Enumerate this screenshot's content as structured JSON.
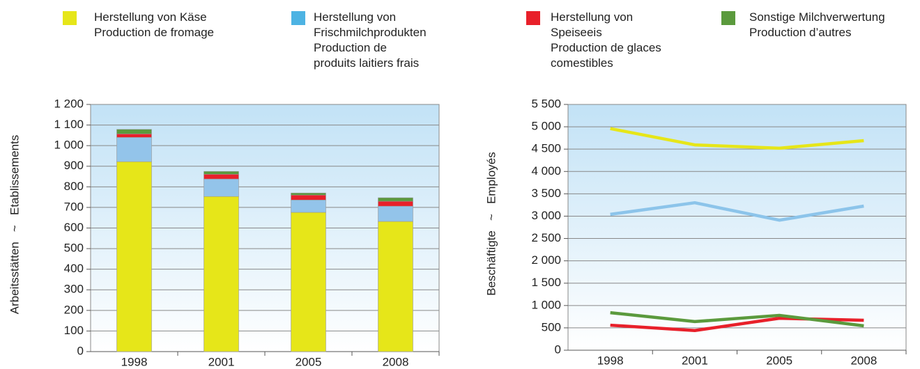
{
  "legend": [
    {
      "name": "Herstellung von Käse\nProduction de fromage",
      "color": "#e6e619"
    },
    {
      "name": "Herstellung von\nFrischmilchprodukten\nProduction de\nproduits laitiers frais",
      "color": "#4db3e3"
    },
    {
      "name": "Herstellung von\nSpeiseeis\nProduction de glaces\ncomestibles",
      "color": "#e8202a"
    },
    {
      "name": "Sonstige Milchverwertung\nProduction d’autres",
      "color": "#5b9a3d"
    }
  ],
  "chart_data": [
    {
      "type": "bar",
      "stacked": true,
      "y_label": "Arbeitsstätten   ~   Etablissements",
      "categories": [
        "1998",
        "2001",
        "2005",
        "2008"
      ],
      "series": [
        {
          "color": "#e6e619",
          "values": [
            922,
            753,
            676,
            632
          ]
        },
        {
          "color": "#93c4ea",
          "values": [
            118,
            85,
            60,
            74
          ]
        },
        {
          "color": "#e8202a",
          "values": [
            17,
            23,
            24,
            24
          ]
        },
        {
          "color": "#5b9a3d",
          "values": [
            22,
            14,
            10,
            17
          ]
        }
      ],
      "ylim": [
        0,
        1200
      ],
      "yticks": [
        0,
        100,
        200,
        300,
        400,
        500,
        600,
        700,
        800,
        900,
        {
          "value": 1000,
          "label": "1 000"
        },
        {
          "value": 1100,
          "label": "1 100"
        },
        {
          "value": 1200,
          "label": "1 200"
        }
      ],
      "grid": true
    },
    {
      "type": "line",
      "y_label": "Beschäftigte   ~   Employés",
      "categories": [
        "1998",
        "2001",
        "2005",
        "2008"
      ],
      "series": [
        {
          "color": "#e6e619",
          "values": [
            4960,
            4595,
            4520,
            4690
          ]
        },
        {
          "color": "#8cc4ea",
          "values": [
            3040,
            3300,
            2910,
            3225
          ]
        },
        {
          "color": "#e8202a",
          "values": [
            560,
            440,
            715,
            670
          ]
        },
        {
          "color": "#5b9a3d",
          "values": [
            840,
            640,
            780,
            545
          ]
        }
      ],
      "ylim": [
        0,
        5500
      ],
      "yticks": [
        0,
        500,
        {
          "value": 1000,
          "label": "1 000"
        },
        {
          "value": 1500,
          "label": "1 500"
        },
        {
          "value": 2000,
          "label": "2 000"
        },
        {
          "value": 2500,
          "label": "2 500"
        },
        {
          "value": 3000,
          "label": "3 000"
        },
        {
          "value": 3500,
          "label": "3 500"
        },
        {
          "value": 4000,
          "label": "4 000"
        },
        {
          "value": 4500,
          "label": "4 500"
        },
        {
          "value": 5000,
          "label": "5 000"
        },
        {
          "value": 5500,
          "label": "5 500"
        }
      ],
      "grid": true
    }
  ]
}
